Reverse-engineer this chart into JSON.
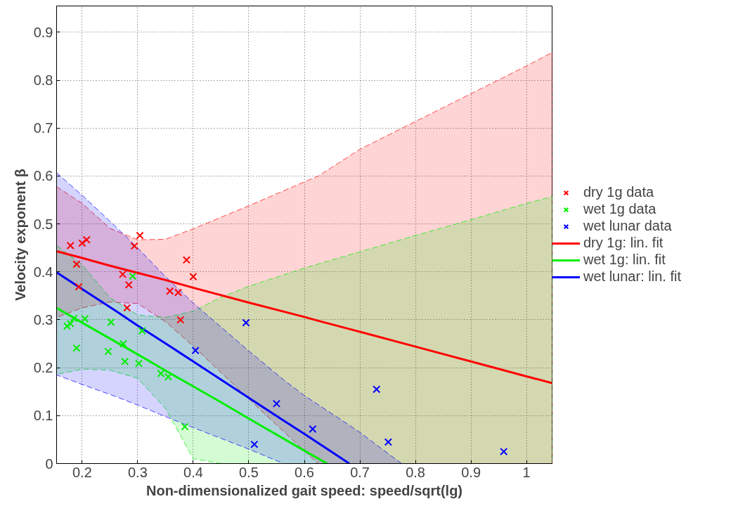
{
  "chart_data": {
    "type": "scatter",
    "xlabel": "Non-dimensionalized gait speed: speed/sqrt(lg)",
    "ylabel": "Velocity exponent β",
    "xlim": [
      0.154,
      1.046
    ],
    "ylim": [
      0,
      0.955
    ],
    "xticks": [
      0.2,
      0.3,
      0.4,
      0.5,
      0.6,
      0.7,
      0.8,
      0.9,
      1
    ],
    "yticks": [
      0,
      0.1,
      0.2,
      0.3,
      0.4,
      0.5,
      0.6,
      0.7,
      0.8,
      0.9
    ],
    "grid": true,
    "legend": "right",
    "series": [
      {
        "name": "dry 1g data",
        "marker": "cross",
        "color": "#ff0000",
        "x": [
          0.179,
          0.2,
          0.208,
          0.19,
          0.194,
          0.304,
          0.294,
          0.273,
          0.284,
          0.281,
          0.358,
          0.373,
          0.388,
          0.4,
          0.377
        ],
        "values": [
          0.455,
          0.46,
          0.467,
          0.416,
          0.369,
          0.476,
          0.454,
          0.395,
          0.373,
          0.325,
          0.36,
          0.357,
          0.425,
          0.39,
          0.3
        ]
      },
      {
        "name": "wet 1g data",
        "marker": "cross",
        "color": "#00ee00",
        "x": [
          0.291,
          0.173,
          0.179,
          0.185,
          0.205,
          0.19,
          0.252,
          0.247,
          0.274,
          0.277,
          0.302,
          0.308,
          0.342,
          0.355,
          0.385
        ],
        "values": [
          0.391,
          0.287,
          0.292,
          0.303,
          0.302,
          0.241,
          0.295,
          0.234,
          0.25,
          0.213,
          0.209,
          0.277,
          0.188,
          0.181,
          0.077
        ]
      },
      {
        "name": "wet lunar data",
        "marker": "cross",
        "color": "#0000ff",
        "x": [
          0.495,
          0.404,
          0.55,
          0.51,
          0.615,
          0.73,
          0.751,
          0.959
        ],
        "values": [
          0.294,
          0.236,
          0.125,
          0.04,
          0.072,
          0.155,
          0.045,
          0.025
        ]
      },
      {
        "name": "dry 1g: lin. fit",
        "type": "line",
        "color": "#ff0000",
        "x": [
          0.154,
          0.2,
          0.25,
          0.3,
          0.35,
          0.4,
          0.5,
          0.6,
          0.625,
          0.7,
          0.8,
          0.9,
          1.0,
          1.046
        ],
        "values": [
          0.443,
          0.429,
          0.413,
          0.398,
          0.383,
          0.367,
          0.336,
          0.306,
          0.298,
          0.275,
          0.244,
          0.213,
          0.182,
          0.168
        ],
        "upper": [
          0.578,
          0.543,
          0.491,
          0.467,
          0.468,
          0.49,
          0.538,
          0.588,
          0.6,
          0.656,
          0.714,
          0.772,
          0.83,
          0.858
        ],
        "lower": [
          0.305,
          0.325,
          0.337,
          0.334,
          0.296,
          0.245,
          0.135,
          0.026,
          0,
          0,
          0,
          0,
          0,
          0
        ]
      },
      {
        "name": "wet 1g: lin. fit",
        "type": "line",
        "color": "#00ee00",
        "x": [
          0.154,
          0.2,
          0.25,
          0.3,
          0.35,
          0.4,
          0.45,
          0.5,
          0.6,
          0.641,
          0.7,
          0.8,
          0.9,
          1.0,
          1.046
        ],
        "values": [
          0.325,
          0.294,
          0.261,
          0.228,
          0.194,
          0.161,
          0.128,
          0.094,
          0.027,
          0,
          null,
          null,
          null,
          null,
          null
        ],
        "upper": [
          0.455,
          0.415,
          0.346,
          0.31,
          0.305,
          0.318,
          0.347,
          0.37,
          0.408,
          0.422,
          0.442,
          0.476,
          0.509,
          0.543,
          0.557
        ],
        "lower": [
          0.186,
          0.197,
          0.195,
          0.178,
          0.115,
          0.01,
          0,
          0,
          0,
          0,
          0,
          0,
          0,
          0,
          0
        ]
      },
      {
        "name": "wet lunar: lin. fit",
        "type": "line",
        "color": "#0000ff",
        "x": [
          0.154,
          0.2,
          0.26,
          0.3,
          0.35,
          0.4,
          0.5,
          0.5625,
          0.6,
          0.681,
          0.7,
          0.775
        ],
        "values": [
          0.399,
          0.364,
          0.319,
          0.288,
          0.251,
          0.213,
          0.137,
          0.09,
          0.062,
          0,
          null,
          null
        ],
        "upper": [
          0.607,
          0.56,
          0.495,
          0.45,
          0.39,
          0.335,
          0.235,
          0.175,
          0.142,
          0.08,
          0.065,
          0
        ],
        "lower": [
          0.185,
          0.165,
          0.14,
          0.122,
          0.098,
          0.075,
          0.03,
          0,
          0,
          0,
          0,
          0
        ]
      }
    ]
  }
}
